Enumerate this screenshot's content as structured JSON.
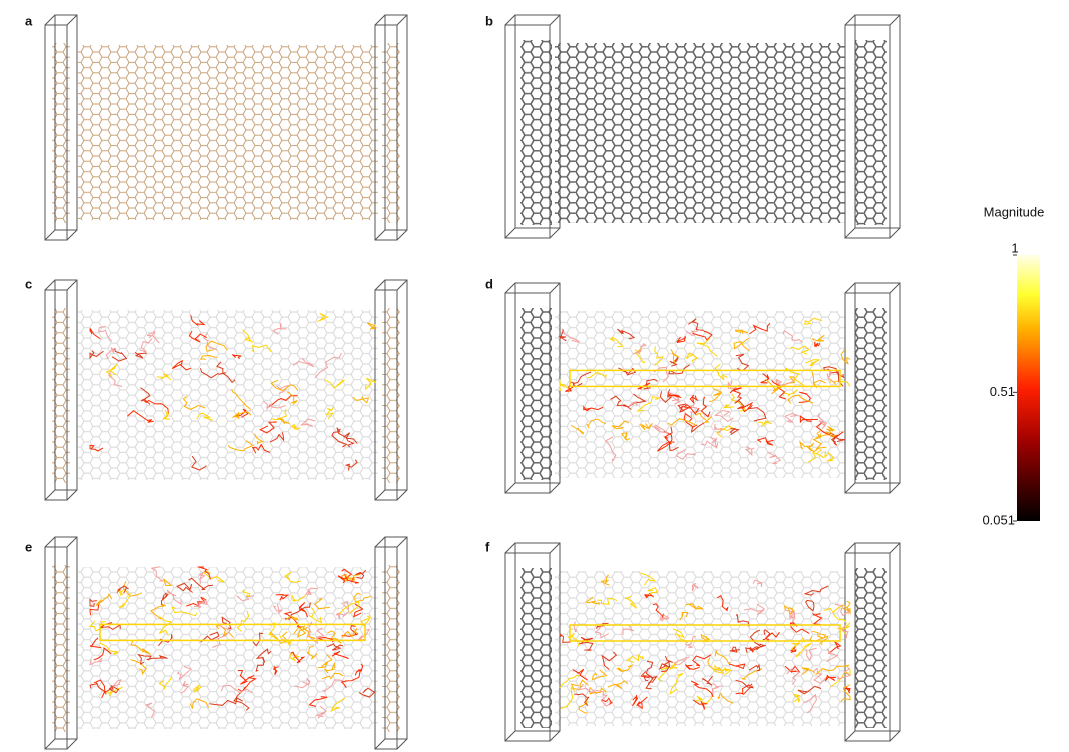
{
  "panels": [
    {
      "label": "a"
    },
    {
      "label": "b"
    },
    {
      "label": "c"
    },
    {
      "label": "d"
    },
    {
      "label": "e"
    },
    {
      "label": "f"
    }
  ],
  "colorbar": {
    "title": "Magnitude",
    "lim": [
      0.051,
      1
    ],
    "ticks": [
      1,
      0.51,
      0.051
    ]
  }
}
